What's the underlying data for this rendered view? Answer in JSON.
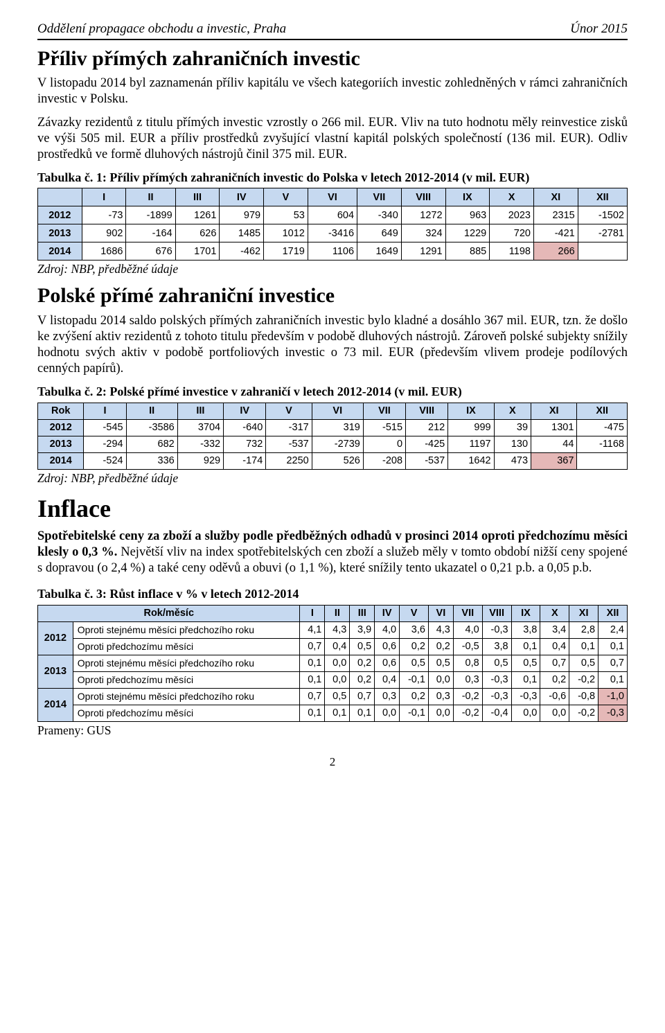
{
  "header": {
    "left": "Oddělení propagace obchodu a investic, Praha",
    "right": "Únor 2015"
  },
  "s1": {
    "title": "Příliv přímých zahraničních investic",
    "p1": "V listopadu 2014 byl zaznamenán příliv kapitálu ve všech kategoriích investic zohledněných v rámci zahraničních investic v Polsku.",
    "p2": "Závazky rezidentů z titulu přímých investic vzrostly o 266 mil. EUR. Vliv na tuto hodnotu měly reinvestice zisků ve výši 505 mil. EUR a příliv prostředků zvyšující vlastní kapitál polských společností (136 mil. EUR). Odliv prostředků ve formě dluhových nástrojů činil 375 mil. EUR.",
    "caption": "Tabulka č. 1: Příliv přímých zahraničních investic do Polska v letech 2012-2014 (v mil. EUR)",
    "source": "Zdroj: NBP, předběžné údaje"
  },
  "t1": {
    "type": "table",
    "header_bg": "#c6d9f0",
    "highlight_bg": "#e5b8b7",
    "border_color": "#000000",
    "cols": [
      "I",
      "II",
      "III",
      "IV",
      "V",
      "VI",
      "VII",
      "VIII",
      "IX",
      "X",
      "XI",
      "XII"
    ],
    "rows": [
      {
        "year": "2012",
        "v": [
          "-73",
          "-1899",
          "1261",
          "979",
          "53",
          "604",
          "-340",
          "1272",
          "963",
          "2023",
          "2315",
          "-1502"
        ],
        "hi": []
      },
      {
        "year": "2013",
        "v": [
          "902",
          "-164",
          "626",
          "1485",
          "1012",
          "-3416",
          "649",
          "324",
          "1229",
          "720",
          "-421",
          "-2781"
        ],
        "hi": []
      },
      {
        "year": "2014",
        "v": [
          "1686",
          "676",
          "1701",
          "-462",
          "1719",
          "1106",
          "1649",
          "1291",
          "885",
          "1198",
          "266",
          ""
        ],
        "hi": [
          10
        ]
      }
    ]
  },
  "s2": {
    "title": "Polské přímé zahraniční investice",
    "p1": "V listopadu 2014 saldo polských přímých zahraničních investic bylo kladné a dosáhlo 367 mil. EUR, tzn. že došlo ke zvýšení aktiv rezidentů z tohoto titulu především v podobě dluhových nástrojů. Zároveň polské subjekty snížily hodnotu svých aktiv v podobě portfoliových investic o 73 mil. EUR (především vlivem prodeje podílových cenných papírů).",
    "caption": "Tabulka č. 2: Polské přímé investice v zahraničí v letech 2012-2014 (v mil. EUR)",
    "source": "Zdroj: NBP, předběžné údaje"
  },
  "t2": {
    "type": "table",
    "header_bg": "#c6d9f0",
    "highlight_bg": "#e5b8b7",
    "yearhdr": "Rok",
    "cols": [
      "I",
      "II",
      "III",
      "IV",
      "V",
      "VI",
      "VII",
      "VIII",
      "IX",
      "X",
      "XI",
      "XII"
    ],
    "rows": [
      {
        "year": "2012",
        "v": [
          "-545",
          "-3586",
          "3704",
          "-640",
          "-317",
          "319",
          "-515",
          "212",
          "999",
          "39",
          "1301",
          "-475"
        ],
        "hi": []
      },
      {
        "year": "2013",
        "v": [
          "-294",
          "682",
          "-332",
          "732",
          "-537",
          "-2739",
          "0",
          "-425",
          "1197",
          "130",
          "44",
          "-1168"
        ],
        "hi": []
      },
      {
        "year": "2014",
        "v": [
          "-524",
          "336",
          "929",
          "-174",
          "2250",
          "526",
          "-208",
          "-537",
          "1642",
          "473",
          "367",
          ""
        ],
        "hi": [
          10
        ]
      }
    ]
  },
  "s3": {
    "title": "Inflace",
    "p1a": "Spotřebitelské ceny za zboží a služby podle předběžných odhadů v prosinci 2014 oproti předchozímu měsíci klesly o 0,3 %.",
    "p1b": " Největší vliv na index spotřebitelských cen zboží a služeb měly v tomto období nižší ceny spojené s dopravou (o 2,4 %) a také ceny oděvů a obuvi (o 1,1 %), které snížily tento ukazatel o 0,21 p.b. a 0,05 p.b.",
    "caption": "Tabulka č. 3: Růst inflace v % v letech 2012-2014",
    "source": "Prameny: GUS"
  },
  "t3": {
    "type": "table",
    "header_bg": "#c6d9f0",
    "highlight_bg": "#e5b8b7",
    "hdr_left": "Rok/měsíc",
    "cols": [
      "I",
      "II",
      "III",
      "IV",
      "V",
      "VI",
      "VII",
      "VIII",
      "IX",
      "X",
      "XI",
      "XII"
    ],
    "label_a": "Oproti stejnému měsíci předchozího roku",
    "label_b": "Oproti předchozímu měsíci",
    "years": [
      {
        "y": "2012",
        "a": [
          "4,1",
          "4,3",
          "3,9",
          "4,0",
          "3,6",
          "4,3",
          "4,0",
          "-0,3",
          "3,8",
          "3,4",
          "2,8",
          "2,4"
        ],
        "a_hi": [],
        "b": [
          "0,7",
          "0,4",
          "0,5",
          "0,6",
          "0,2",
          "0,2",
          "-0,5",
          "3,8",
          "0,1",
          "0,4",
          "0,1",
          "0,1"
        ],
        "b_hi": []
      },
      {
        "y": "2013",
        "a": [
          "0,1",
          "0,0",
          "0,2",
          "0,6",
          "0,5",
          "0,5",
          "0,8",
          "0,5",
          "0,5",
          "0,7",
          "0,5",
          "0,7"
        ],
        "a_hi": [],
        "b": [
          "0,1",
          "0,0",
          "0,2",
          "0,4",
          "-0,1",
          "0,0",
          "0,3",
          "-0,3",
          "0,1",
          "0,2",
          "-0,2",
          "0,1"
        ],
        "b_hi": []
      },
      {
        "y": "2014",
        "a": [
          "0,7",
          "0,5",
          "0,7",
          "0,3",
          "0,2",
          "0,3",
          "-0,2",
          "-0,3",
          "-0,3",
          "-0,6",
          "-0,8",
          "-1,0"
        ],
        "a_hi": [
          11
        ],
        "b": [
          "0,1",
          "0,1",
          "0,1",
          "0,0",
          "-0,1",
          "0,0",
          "-0,2",
          "-0,4",
          "0,0",
          "0,0",
          "-0,2",
          "-0,3"
        ],
        "b_hi": [
          11
        ]
      }
    ]
  },
  "pagefoot": "2"
}
